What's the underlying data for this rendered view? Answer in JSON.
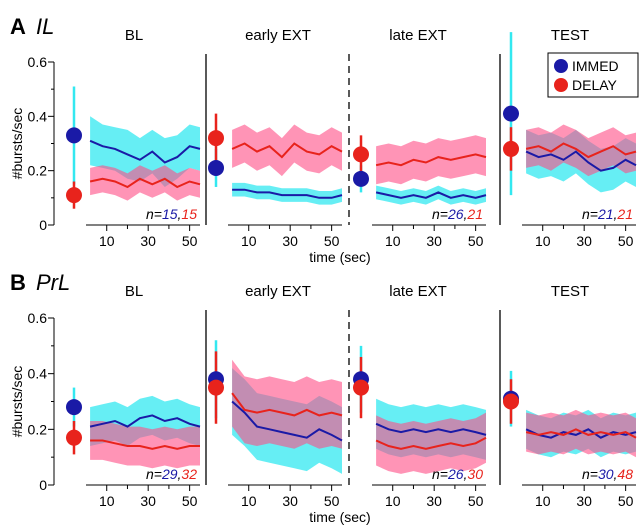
{
  "colors": {
    "immed": "#1a1aa6",
    "immed_band": "#33e8f0",
    "delay": "#e8231c",
    "delay_band": "#ff4d86",
    "overlap": "#6a4f9a"
  },
  "legend": [
    {
      "label": "IMMED",
      "color": "#1a1aa6"
    },
    {
      "label": "DELAY",
      "color": "#e8231c"
    }
  ],
  "legend_placement": "top-right",
  "x_label": "time (sec)",
  "y_label": "#bursts/sec",
  "x_ticks": [
    10,
    30,
    50
  ],
  "y_ticks": [
    "0",
    "0.2",
    "0.4",
    "0.6"
  ],
  "chart_data": [
    {
      "type": "line",
      "panel_letter": "A",
      "panel_name": "IL",
      "ylabel": "#bursts/sec",
      "xlabel": "time (sec)",
      "ylim": [
        0,
        0.6
      ],
      "xlim": [
        0,
        55
      ],
      "phases": [
        {
          "title": "BL",
          "n_immed": "15",
          "n_delay": "15",
          "x": [
            2,
            8,
            14,
            20,
            26,
            32,
            38,
            44,
            50,
            55
          ],
          "series": [
            {
              "name": "IMMED",
              "values": [
                0.31,
                0.29,
                0.28,
                0.26,
                0.24,
                0.27,
                0.23,
                0.25,
                0.29,
                0.28
              ],
              "band": [
                0.09,
                0.08,
                0.08,
                0.09,
                0.08,
                0.08,
                0.09,
                0.08,
                0.08,
                0.08
              ]
            },
            {
              "name": "DELAY",
              "values": [
                0.16,
                0.17,
                0.16,
                0.14,
                0.17,
                0.15,
                0.17,
                0.14,
                0.16,
                0.15
              ],
              "band": [
                0.05,
                0.05,
                0.05,
                0.05,
                0.05,
                0.05,
                0.05,
                0.05,
                0.05,
                0.05
              ]
            }
          ],
          "point": [
            {
              "name": "IMMED",
              "value": 0.33,
              "err": 0.18
            },
            {
              "name": "DELAY",
              "value": 0.11,
              "err": 0.05
            }
          ]
        },
        {
          "title": "early EXT",
          "x": [
            2,
            8,
            14,
            20,
            26,
            32,
            38,
            44,
            50,
            55
          ],
          "series": [
            {
              "name": "IMMED",
              "values": [
                0.13,
                0.13,
                0.12,
                0.12,
                0.11,
                0.11,
                0.11,
                0.1,
                0.1,
                0.11
              ],
              "band": [
                0.025,
                0.025,
                0.025,
                0.025,
                0.025,
                0.025,
                0.025,
                0.025,
                0.025,
                0.025
              ]
            },
            {
              "name": "DELAY",
              "values": [
                0.28,
                0.3,
                0.27,
                0.29,
                0.25,
                0.3,
                0.27,
                0.26,
                0.29,
                0.27
              ],
              "band": [
                0.07,
                0.07,
                0.07,
                0.07,
                0.07,
                0.07,
                0.07,
                0.07,
                0.07,
                0.07
              ]
            }
          ],
          "point": [
            {
              "name": "IMMED",
              "value": 0.21,
              "err": 0.07
            },
            {
              "name": "DELAY",
              "value": 0.32,
              "err": 0.09
            }
          ]
        },
        {
          "title": "late EXT",
          "n_immed": "26",
          "n_delay": "21",
          "x": [
            2,
            8,
            14,
            20,
            26,
            32,
            38,
            44,
            50,
            55
          ],
          "series": [
            {
              "name": "IMMED",
              "values": [
                0.12,
                0.11,
                0.1,
                0.11,
                0.1,
                0.12,
                0.1,
                0.11,
                0.1,
                0.11
              ],
              "band": [
                0.025,
                0.025,
                0.025,
                0.025,
                0.025,
                0.025,
                0.025,
                0.025,
                0.025,
                0.025
              ]
            },
            {
              "name": "DELAY",
              "values": [
                0.22,
                0.23,
                0.22,
                0.24,
                0.23,
                0.25,
                0.24,
                0.25,
                0.26,
                0.25
              ],
              "band": [
                0.07,
                0.07,
                0.07,
                0.07,
                0.07,
                0.07,
                0.07,
                0.07,
                0.07,
                0.07
              ]
            }
          ],
          "point": [
            {
              "name": "IMMED",
              "value": 0.17,
              "err": 0.05
            },
            {
              "name": "DELAY",
              "value": 0.26,
              "err": 0.07
            }
          ]
        },
        {
          "title": "TEST",
          "n_immed": "21",
          "n_delay": "21",
          "x": [
            2,
            8,
            14,
            20,
            26,
            32,
            38,
            44,
            50,
            55
          ],
          "series": [
            {
              "name": "IMMED",
              "values": [
                0.27,
                0.25,
                0.26,
                0.24,
                0.27,
                0.23,
                0.2,
                0.21,
                0.24,
                0.22
              ],
              "band": [
                0.08,
                0.08,
                0.08,
                0.08,
                0.08,
                0.08,
                0.08,
                0.08,
                0.08,
                0.08
              ]
            },
            {
              "name": "DELAY",
              "values": [
                0.28,
                0.29,
                0.27,
                0.3,
                0.28,
                0.25,
                0.27,
                0.29,
                0.26,
                0.27
              ],
              "band": [
                0.07,
                0.07,
                0.07,
                0.07,
                0.07,
                0.07,
                0.07,
                0.07,
                0.07,
                0.07
              ]
            }
          ],
          "point": [
            {
              "name": "IMMED",
              "value": 0.41,
              "err": 0.3
            },
            {
              "name": "DELAY",
              "value": 0.28,
              "err": 0.08
            }
          ]
        }
      ]
    },
    {
      "type": "line",
      "panel_letter": "B",
      "panel_name": "PrL",
      "ylabel": "#bursts/sec",
      "xlabel": "time (sec)",
      "ylim": [
        0,
        0.6
      ],
      "xlim": [
        0,
        55
      ],
      "phases": [
        {
          "title": "BL",
          "n_immed": "29",
          "n_delay": "32",
          "x": [
            2,
            8,
            14,
            20,
            26,
            32,
            38,
            44,
            50,
            55
          ],
          "series": [
            {
              "name": "IMMED",
              "values": [
                0.21,
                0.22,
                0.23,
                0.21,
                0.24,
                0.25,
                0.23,
                0.24,
                0.22,
                0.21
              ],
              "band": [
                0.07,
                0.07,
                0.07,
                0.07,
                0.07,
                0.07,
                0.07,
                0.07,
                0.07,
                0.07
              ]
            },
            {
              "name": "DELAY",
              "values": [
                0.16,
                0.16,
                0.15,
                0.14,
                0.14,
                0.13,
                0.14,
                0.13,
                0.14,
                0.14
              ],
              "band": [
                0.07,
                0.07,
                0.07,
                0.07,
                0.07,
                0.07,
                0.07,
                0.07,
                0.07,
                0.07
              ]
            }
          ],
          "point": [
            {
              "name": "IMMED",
              "value": 0.28,
              "err": 0.07
            },
            {
              "name": "DELAY",
              "value": 0.17,
              "err": 0.06
            }
          ]
        },
        {
          "title": "early EXT",
          "x": [
            2,
            8,
            14,
            20,
            26,
            32,
            38,
            44,
            50,
            55
          ],
          "series": [
            {
              "name": "IMMED",
              "values": [
                0.3,
                0.26,
                0.21,
                0.2,
                0.19,
                0.18,
                0.17,
                0.2,
                0.18,
                0.16
              ],
              "band": [
                0.12,
                0.12,
                0.12,
                0.12,
                0.12,
                0.12,
                0.12,
                0.12,
                0.12,
                0.12
              ]
            },
            {
              "name": "DELAY",
              "values": [
                0.33,
                0.27,
                0.26,
                0.27,
                0.26,
                0.25,
                0.27,
                0.25,
                0.26,
                0.25
              ],
              "band": [
                0.12,
                0.12,
                0.12,
                0.12,
                0.12,
                0.12,
                0.12,
                0.12,
                0.12,
                0.12
              ]
            }
          ],
          "point": [
            {
              "name": "IMMED",
              "value": 0.38,
              "err": 0.14
            },
            {
              "name": "DELAY",
              "value": 0.35,
              "err": 0.13
            }
          ]
        },
        {
          "title": "late EXT",
          "n_immed": "26",
          "n_delay": "30",
          "x": [
            2,
            8,
            14,
            20,
            26,
            32,
            38,
            44,
            50,
            55
          ],
          "series": [
            {
              "name": "IMMED",
              "values": [
                0.22,
                0.2,
                0.19,
                0.2,
                0.19,
                0.2,
                0.19,
                0.2,
                0.19,
                0.18
              ],
              "band": [
                0.09,
                0.09,
                0.09,
                0.09,
                0.09,
                0.09,
                0.09,
                0.09,
                0.09,
                0.09
              ]
            },
            {
              "name": "DELAY",
              "values": [
                0.16,
                0.14,
                0.13,
                0.14,
                0.13,
                0.14,
                0.15,
                0.14,
                0.15,
                0.17
              ],
              "band": [
                0.09,
                0.09,
                0.09,
                0.09,
                0.09,
                0.09,
                0.09,
                0.09,
                0.09,
                0.09
              ]
            }
          ],
          "point": [
            {
              "name": "IMMED",
              "value": 0.38,
              "err": 0.12
            },
            {
              "name": "DELAY",
              "value": 0.35,
              "err": 0.11
            }
          ]
        },
        {
          "title": "TEST",
          "n_immed": "30",
          "n_delay": "48",
          "x": [
            2,
            8,
            14,
            20,
            26,
            32,
            38,
            44,
            50,
            55
          ],
          "series": [
            {
              "name": "IMMED",
              "values": [
                0.2,
                0.18,
                0.17,
                0.19,
                0.18,
                0.2,
                0.17,
                0.19,
                0.18,
                0.19
              ],
              "band": [
                0.07,
                0.07,
                0.07,
                0.07,
                0.07,
                0.07,
                0.07,
                0.07,
                0.07,
                0.07
              ]
            },
            {
              "name": "DELAY",
              "values": [
                0.19,
                0.18,
                0.19,
                0.18,
                0.2,
                0.18,
                0.19,
                0.18,
                0.19,
                0.17
              ],
              "band": [
                0.07,
                0.07,
                0.07,
                0.07,
                0.07,
                0.07,
                0.07,
                0.07,
                0.07,
                0.07
              ]
            }
          ],
          "point": [
            {
              "name": "IMMED",
              "value": 0.31,
              "err": 0.1
            },
            {
              "name": "DELAY",
              "value": 0.3,
              "err": 0.08
            }
          ]
        }
      ]
    }
  ]
}
